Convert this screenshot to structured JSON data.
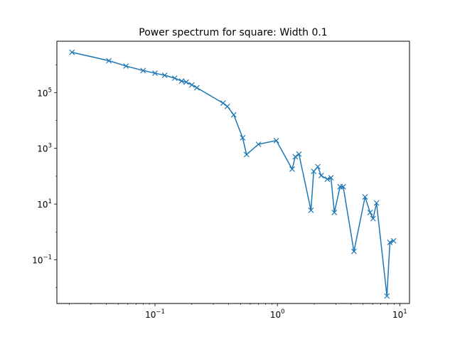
{
  "chart_data": {
    "type": "line",
    "title": "Power spectrum for square: Width 0.1",
    "xlabel": "",
    "ylabel": "",
    "xscale": "log",
    "yscale": "log",
    "xlim": [
      0.0158,
      12.0
    ],
    "ylim": [
      0.0027,
      7000000
    ],
    "grid": false,
    "marker": "x",
    "color": "#1f77b4",
    "x_ticks": [
      {
        "value": 0.1,
        "base": "10",
        "exp": "−1"
      },
      {
        "value": 1,
        "base": "10",
        "exp": "0"
      },
      {
        "value": 10,
        "base": "10",
        "exp": "1"
      }
    ],
    "y_ticks": [
      {
        "value": 0.1,
        "base": "10",
        "exp": "−1"
      },
      {
        "value": 10,
        "base": "10",
        "exp": "1"
      },
      {
        "value": 1000,
        "base": "10",
        "exp": "3"
      },
      {
        "value": 100000,
        "base": "10",
        "exp": "5"
      }
    ],
    "series": [
      {
        "x": [
          0.021,
          0.042,
          0.058,
          0.08,
          0.1,
          0.12,
          0.145,
          0.165,
          0.18,
          0.2,
          0.22,
          0.36,
          0.39,
          0.44,
          0.52,
          0.56,
          0.7,
          0.98,
          1.32,
          1.4,
          1.5,
          1.88,
          1.98,
          2.14,
          2.28,
          2.56,
          2.74,
          2.92,
          3.25,
          3.45,
          4.22,
          5.2,
          5.72,
          6.05,
          6.45,
          7.85,
          8.3,
          8.9
        ],
        "y": [
          2800000,
          1400000,
          900000,
          620000,
          500000,
          420000,
          330000,
          260000,
          240000,
          190000,
          150000,
          42000,
          32000,
          16000,
          2400,
          600,
          1400,
          1900,
          180,
          500,
          620,
          6,
          150,
          220,
          105,
          78,
          88,
          5,
          42,
          42,
          0.2,
          18,
          5,
          3,
          11,
          0.005,
          0.42,
          0.48
        ]
      }
    ]
  }
}
